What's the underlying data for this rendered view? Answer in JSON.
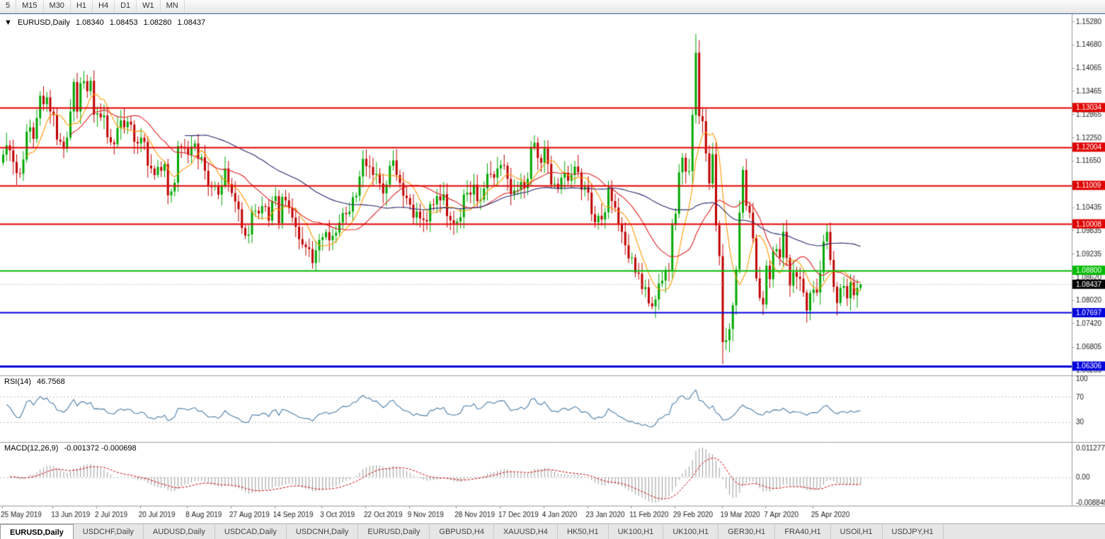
{
  "toolbar": {
    "timeframes": [
      "5",
      "M15",
      "M30",
      "H1",
      "H4",
      "D1",
      "W1",
      "MN"
    ]
  },
  "quote": {
    "expander": "▼",
    "symbol": "EURUSD,Daily",
    "open": "1.08340",
    "high": "1.08453",
    "low": "1.08280",
    "close": "1.08437"
  },
  "rsi": {
    "label": "RSI(14)",
    "value": "46.7568",
    "axis_labels": [
      "100",
      "70",
      "30"
    ],
    "levels": [
      70,
      30
    ]
  },
  "macd": {
    "label": "MACD(12,26,9)",
    "values": "-0.001372 -0.000698",
    "axis_labels": [
      "0.011277",
      "0.00",
      "-0.008845"
    ]
  },
  "price_axis": {
    "ticks": [
      "1.15280",
      "1.14680",
      "1.14065",
      "1.13465",
      "1.12865",
      "1.12250",
      "1.11650",
      "1.11035",
      "1.10435",
      "1.09835",
      "1.09235",
      "1.08620",
      "1.08020",
      "1.07420",
      "1.06805",
      "1.06205"
    ],
    "current": {
      "price": 1.08437,
      "label": "1.08437"
    }
  },
  "hlines": [
    {
      "price": 1.13034,
      "label": "1.13034",
      "color": "#e00000",
      "width": 2
    },
    {
      "price": 1.12004,
      "label": "1.12004",
      "color": "#e00000",
      "width": 2
    },
    {
      "price": 1.11009,
      "label": "1.11009",
      "color": "#e00000",
      "width": 2
    },
    {
      "price": 1.10008,
      "label": "1.10008",
      "color": "#e00000",
      "width": 2
    },
    {
      "price": 1.088,
      "label": "1.08800",
      "color": "#00bb00",
      "width": 2
    },
    {
      "price": 1.07697,
      "label": "1.07697",
      "color": "#0000dd",
      "width": 2
    },
    {
      "price": 1.06306,
      "label": "1.06306",
      "color": "#0000dd",
      "width": 3
    }
  ],
  "date_axis": {
    "ticks": [
      {
        "i": 0,
        "label": "25 May 2019"
      },
      {
        "i": 15,
        "label": "13 Jun 2019"
      },
      {
        "i": 28,
        "label": "2 Jul 2019"
      },
      {
        "i": 41,
        "label": "20 Jul 2019"
      },
      {
        "i": 55,
        "label": "8 Aug 2019"
      },
      {
        "i": 68,
        "label": "27 Aug 2019"
      },
      {
        "i": 81,
        "label": "14 Sep 2019"
      },
      {
        "i": 95,
        "label": "3 Oct 2019"
      },
      {
        "i": 108,
        "label": "22 Oct 2019"
      },
      {
        "i": 121,
        "label": "9 Nov 2019"
      },
      {
        "i": 135,
        "label": "28 Nov 2019"
      },
      {
        "i": 148,
        "label": "17 Dec 2019"
      },
      {
        "i": 161,
        "label": "4 Jan 2020"
      },
      {
        "i": 174,
        "label": "23 Jan 2020"
      },
      {
        "i": 187,
        "label": "11 Feb 2020"
      },
      {
        "i": 200,
        "label": "29 Feb 2020"
      },
      {
        "i": 214,
        "label": "19 Mar 2020"
      },
      {
        "i": 227,
        "label": "7 Apr 2020"
      },
      {
        "i": 241,
        "label": "25 Apr 2020"
      }
    ]
  },
  "tabs": [
    {
      "label": "EURUSD,Daily",
      "active": true
    },
    {
      "label": "USDCHF,Daily"
    },
    {
      "label": "AUDUSD,Daily"
    },
    {
      "label": "USDCAD,Daily"
    },
    {
      "label": "USDCNH,Daily"
    },
    {
      "label": "EURUSD,Daily"
    },
    {
      "label": "GBPUSD,H4"
    },
    {
      "label": "XAUUSD,H4"
    },
    {
      "label": "HK50,H1"
    },
    {
      "label": "UK100,H1"
    },
    {
      "label": "UK100,H1"
    },
    {
      "label": "GER30,H1"
    },
    {
      "label": "FRA40,H1"
    },
    {
      "label": "USOil,H1"
    },
    {
      "label": "USDJPY,H1"
    }
  ],
  "theme": {
    "up": "#00a800",
    "down": "#c00000",
    "axis_text": "#1a1a1a",
    "separator": "#9a9a9a",
    "rsi_line": "#4a7ca8",
    "macd_hist": "#999999",
    "macd_signal": "#cc0000",
    "current_tag_bg": "#000000"
  },
  "chart_data": {
    "type": "candlestick",
    "symbol": "EURUSD",
    "timeframe": "Daily",
    "first_open": 1.116,
    "closes": [
      1.1181,
      1.1205,
      1.1192,
      1.1162,
      1.1133,
      1.1131,
      1.1168,
      1.1241,
      1.1252,
      1.1222,
      1.1276,
      1.1334,
      1.1312,
      1.133,
      1.1293,
      1.1284,
      1.122,
      1.1215,
      1.1196,
      1.1225,
      1.1293,
      1.137,
      1.1293,
      1.1367,
      1.1372,
      1.1346,
      1.1373,
      1.1285,
      1.1288,
      1.1278,
      1.1283,
      1.1226,
      1.1213,
      1.1208,
      1.125,
      1.127,
      1.1252,
      1.1267,
      1.1259,
      1.1214,
      1.121,
      1.1225,
      1.1214,
      1.1152,
      1.1145,
      1.1128,
      1.1149,
      1.1139,
      1.1156,
      1.1075,
      1.1085,
      1.1108,
      1.1203,
      1.12,
      1.1197,
      1.1181,
      1.1201,
      1.121,
      1.117,
      1.1174,
      1.1139,
      1.1098,
      1.1097,
      1.1099,
      1.1077,
      1.11,
      1.1145,
      1.1104,
      1.1081,
      1.1059,
      1.1039,
      1.099,
      1.097,
      1.0973,
      1.1034,
      1.1035,
      1.1028,
      1.1047,
      1.1045,
      1.1009,
      1.106,
      1.1073,
      1.1003,
      1.1071,
      1.1062,
      1.1042,
      1.1017,
      1.0993,
      1.0961,
      1.0947,
      1.094,
      1.0935,
      1.0899,
      1.0932,
      1.0959,
      1.0966,
      1.0979,
      1.0958,
      1.097,
      1.0978,
      1.1004,
      1.1029,
      1.1026,
      1.1033,
      1.107,
      1.1074,
      1.1124,
      1.117,
      1.1151,
      1.1149,
      1.1128,
      1.1131,
      1.1106,
      1.108,
      1.1103,
      1.1152,
      1.1166,
      1.1128,
      1.1107,
      1.1074,
      1.1068,
      1.1051,
      1.1017,
      1.1033,
      1.1015,
      1.1011,
      1.1007,
      1.1052,
      1.1051,
      1.1073,
      1.1062,
      1.1078,
      1.1021,
      1.101,
      1.1002,
      1.1007,
      1.1018,
      1.1077,
      1.1082,
      1.1077,
      1.1103,
      1.106,
      1.1064,
      1.1093,
      1.1131,
      1.113,
      1.1121,
      1.1145,
      1.1154,
      1.1152,
      1.1118,
      1.1078,
      1.1088,
      1.1089,
      1.111,
      1.1093,
      1.1118,
      1.12,
      1.1212,
      1.1172,
      1.116,
      1.1197,
      1.1157,
      1.1103,
      1.1105,
      1.1092,
      1.1121,
      1.1134,
      1.1113,
      1.1128,
      1.115,
      1.1135,
      1.109,
      1.1097,
      1.1082,
      1.1026,
      1.1005,
      1.1022,
      1.1012,
      1.1031,
      1.1094,
      1.106,
      1.1043,
      1.1001,
      1.098,
      1.0945,
      1.0911,
      1.0913,
      1.0874,
      1.0871,
      1.0831,
      1.0836,
      1.0794,
      1.0786,
      1.0804,
      1.0846,
      1.0853,
      1.0881,
      1.088,
      1.0999,
      1.1027,
      1.1135,
      1.1173,
      1.1137,
      1.1138,
      1.1284,
      1.1446,
      1.1281,
      1.1268,
      1.1184,
      1.1106,
      1.1182,
      1.0997,
      1.0917,
      1.0693,
      1.0698,
      1.0727,
      1.0789,
      1.0882,
      1.103,
      1.1141,
      1.1048,
      1.103,
      1.0963,
      1.0859,
      1.0808,
      1.0791,
      1.0892,
      1.0857,
      1.0929,
      1.0935,
      1.0913,
      1.098,
      1.0912,
      1.084,
      1.0875,
      1.0863,
      1.0858,
      1.0822,
      1.0775,
      1.0821,
      1.083,
      1.0822,
      1.0874,
      1.0955,
      1.098,
      1.0907,
      1.0837,
      1.0795,
      1.0834,
      1.0839,
      1.0807,
      1.0848,
      1.0815,
      1.0834,
      1.0844
    ],
    "wick_overrides": {
      "93": {
        "l": 1.0879
      },
      "193": {
        "l": 1.0778
      },
      "206": {
        "h": 1.1495
      },
      "214": {
        "l": 1.0636
      },
      "255": {
        "h": 1.08453,
        "l": 1.0828
      }
    },
    "moving_averages": [
      {
        "type": "sma",
        "period": 8,
        "color": "#ff9900"
      },
      {
        "type": "sma",
        "period": 21,
        "color": "#dd2222"
      },
      {
        "type": "sma",
        "period": 55,
        "color": "#26276b"
      }
    ],
    "indicators": {
      "rsi_period": 14,
      "macd": [
        12,
        26,
        9
      ]
    }
  }
}
